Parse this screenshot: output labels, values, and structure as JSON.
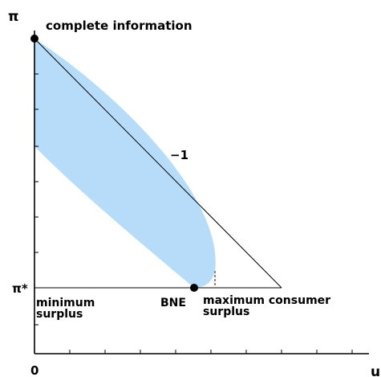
{
  "labels": {
    "y_axis": "π",
    "x_axis": "u",
    "origin": "0",
    "pi_star": "π*",
    "complete_information": "complete information",
    "slope": "−1",
    "bne": "BNE",
    "minimum_surplus_line1": "minimum",
    "minimum_surplus_line2": "surplus",
    "maximum_consumer_surplus_line1": "maximum consumer",
    "maximum_consumer_surplus_line2": "surplus"
  },
  "colors": {
    "axes": "#000000",
    "region_fill": "#b7dcf9",
    "marker": "#000000",
    "dashed_marker": "#888888"
  }
}
